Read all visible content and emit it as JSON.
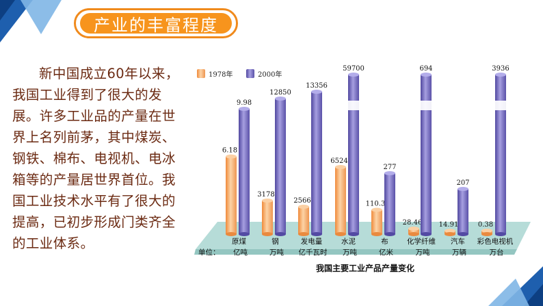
{
  "slide": {
    "title": "产业的丰富程度",
    "paragraph": "新中国成立60年以来，我国工业得到了很大的发展。许多工业品的产量在世界上名列前茅，其中煤炭、钢铁、棉布、电视机、电冰箱等的产量居世界首位。我国工业技术水平有了很大的提高，已初步形成门类齐全的工业体系。",
    "colors": {
      "accent": "#f7941d",
      "text": "#6b2a12",
      "blue_dark": "#1e5fae",
      "blue_light": "#7fb6e6"
    }
  },
  "chart_data": {
    "type": "bar",
    "title": "我国主要工业产品产量变化",
    "unit_label": "单位：",
    "categories": [
      "原煤",
      "钢",
      "发电量",
      "水泥",
      "布",
      "化学纤维",
      "汽车",
      "彩色电视机"
    ],
    "units": [
      "亿吨",
      "万吨",
      "亿千瓦时",
      "万吨",
      "亿米",
      "万吨",
      "万辆",
      "万台"
    ],
    "series": [
      {
        "name": "1978年",
        "values": [
          6.18,
          3178,
          2566,
          6524,
          110.3,
          28.46,
          14.91,
          0.38
        ],
        "labels": [
          "6.18",
          "3178",
          "2566",
          "6524",
          "110.3",
          "28.46",
          "14.91",
          "0.38"
        ]
      },
      {
        "name": "2000年",
        "values": [
          9.98,
          12850,
          13356,
          59700,
          277,
          694,
          207,
          3936
        ],
        "labels": [
          "9.98",
          "12850",
          "13356",
          "59700",
          "277",
          "694",
          "207",
          "3936"
        ]
      }
    ],
    "broken_axis_categories": [
      "水泥",
      "化学纤维",
      "彩色电视机"
    ],
    "colors": {
      "1978年": "#f5a35e",
      "2000年": "#6d63b3",
      "floor": "#b6dcd8"
    },
    "legend_position": "top-left",
    "grid": false
  }
}
